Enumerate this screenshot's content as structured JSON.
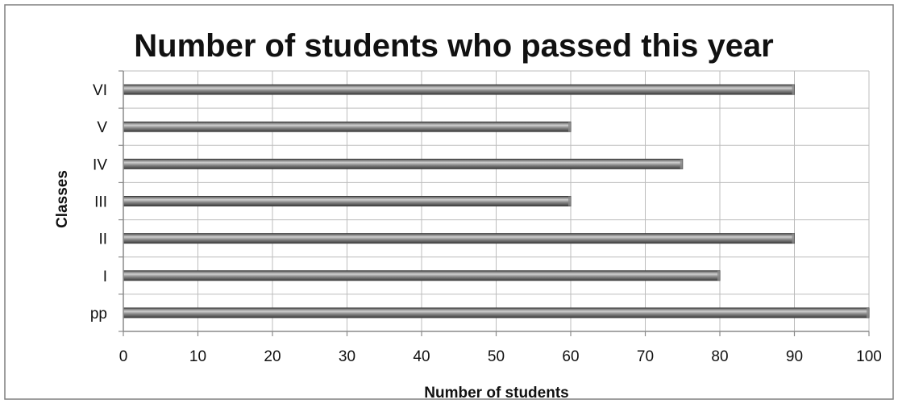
{
  "colors": {
    "bar_dark": "#3e3e3e",
    "bar_mid": "#8c8c8c",
    "bar_light": "#cfcfcf",
    "grid": "#bdbdbd",
    "axis": "#8a8a8a",
    "frame": "#7f7f7f"
  },
  "chart_data": {
    "type": "bar",
    "orientation": "horizontal",
    "title": "Number of students who passed this year",
    "xlabel": "Number of students",
    "ylabel": "Classes",
    "categories": [
      "pp",
      "I",
      "II",
      "III",
      "IV",
      "V",
      "VI"
    ],
    "values": [
      100,
      80,
      90,
      60,
      75,
      60,
      90
    ],
    "xlim": [
      0,
      100
    ],
    "xticks": [
      "0",
      "10",
      "20",
      "30",
      "40",
      "50",
      "60",
      "70",
      "80",
      "90",
      "100"
    ],
    "grid": true,
    "legend": "none"
  }
}
